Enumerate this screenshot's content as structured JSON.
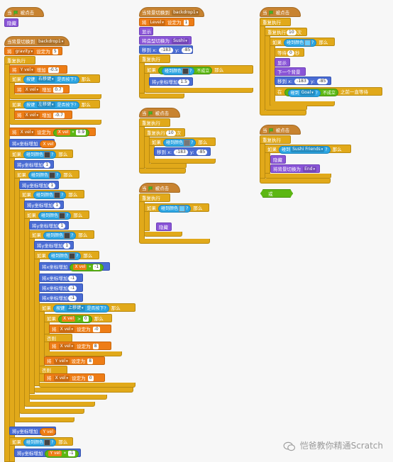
{
  "colors": {
    "event": "#c88330",
    "control": "#e1a91a",
    "variable": "#ee7d16",
    "looks": "#8a55d7",
    "motion": "#4a6cd4",
    "sensing": "#2ca5e2",
    "operator": "#5cb712"
  },
  "icons": {
    "flag": "green-flag-icon",
    "dropdown": "dropdown-arrow-icon",
    "loop": "loop-arrow-icon",
    "watermark": "wechat-icon"
  },
  "labels": {
    "when": "当",
    "clicked": "被点击",
    "hide": "隐藏",
    "show": "显示",
    "forever": "重复执行",
    "repeat": "重复执行",
    "times": "次",
    "if": "如果",
    "then": "那么",
    "else": "否则",
    "touching_color": "碰到颜色",
    "touching": "碰到",
    "question": "?",
    "not_hold": "不成立",
    "key": "按键",
    "pressed": "是否按下?",
    "set": "将",
    "set_to": "设定为",
    "change": "增加",
    "change_y_by": "将y坐标增加",
    "change_x_by": "将x坐标增加",
    "goto_x": "移到 x:",
    "y": "y:",
    "switch_costume": "将造型切换为",
    "switch_backdrop": "将背景切换为",
    "when_backdrop": "当背景切换到",
    "wait": "等待",
    "secs": "秒",
    "next_backdrop": "下一个背景",
    "in": "在",
    "wait_until": "之前一直等待",
    "gt": ">",
    "lt": "<",
    "or": "或"
  },
  "values": {
    "backdrop1": "backdrop1",
    "gravity": "gravity",
    "gravity_val": "5",
    "yvel": "Y vel",
    "xvel": "X vel",
    "yvel_min": "-0.5",
    "right_arrow": "右移键",
    "left_arrow": "左移键",
    "up_arrow": "上移键",
    "x_plus": "0.7",
    "x_minus": "-0.7",
    "x_mult": "0.9",
    "one": "1",
    "neg_one": "-1",
    "zero": "0",
    "neg_x": "-0",
    "eight": "8",
    "level": "Level",
    "level_val": "1",
    "sushi": "Sushi",
    "goal": "Goal",
    "sushi_friends": "Sushi Friends",
    "end": "End",
    "x_pos": "-183",
    "y_pos": "-85",
    "glide_y": "1.5",
    "ten": "10",
    "wait_secs": "0",
    "watermark": "恺爸教你精通Scratch"
  }
}
